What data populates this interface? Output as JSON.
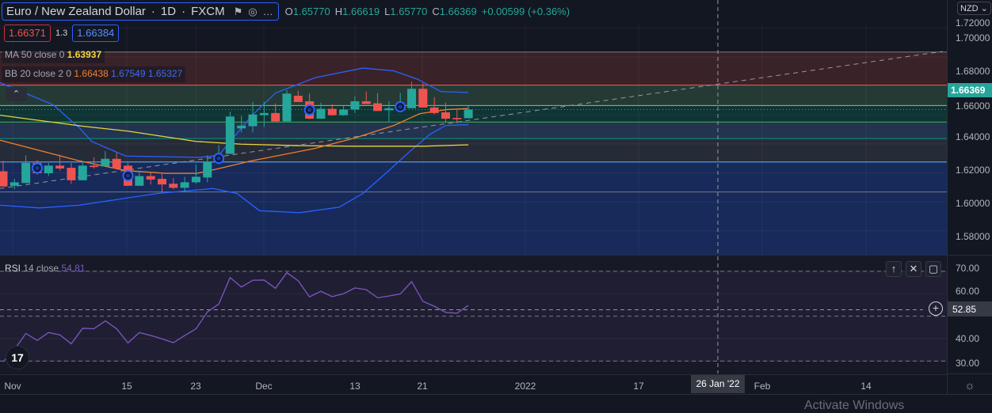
{
  "header": {
    "symbol": "Euro / New Zealand Dollar",
    "interval": "1D",
    "exchange": "FXCM",
    "separator": "·",
    "ohlc": {
      "o_label": "O",
      "o": "1.65770",
      "h_label": "H",
      "h": "1.66619",
      "l_label": "L",
      "l": "1.65770",
      "c_label": "C",
      "c": "1.66369",
      "change": "+0.00599 (+0.36%)"
    }
  },
  "trade": {
    "sell": "1.66371",
    "spread": "1.3",
    "buy": "1.66384"
  },
  "indicators": {
    "ma": {
      "name": "MA",
      "params": "50 close 0",
      "value": "1.63937"
    },
    "bb": {
      "name": "BB",
      "params": "20 close 2 0",
      "basis": "1.66438",
      "upper": "1.67549",
      "lower": "1.65327"
    },
    "rsi": {
      "name": "RSI",
      "params": "14 close",
      "value": "54.81"
    }
  },
  "collapse_icon": "chevron-up-icon",
  "currency": "NZD",
  "price_axis": {
    "labels": [
      "1.72000",
      "1.70000",
      "1.68000",
      "1.66000",
      "1.64000",
      "1.62000",
      "1.60000",
      "1.58000"
    ],
    "current": "1.66369"
  },
  "rsi_axis": {
    "labels": [
      "70.00",
      "60.00",
      "40.00",
      "30.00"
    ],
    "crosshair": "52.85"
  },
  "time_axis": {
    "labels": [
      "Nov",
      "15",
      "23",
      "Dec",
      "13",
      "21",
      "2022",
      "17",
      "Feb",
      "14"
    ],
    "crosshair": "26 Jan '22"
  },
  "watermark": "Activate Windows",
  "logo": "TV",
  "colors": {
    "up": "#26a69a",
    "down": "#ef5350",
    "ma": "#e6d53c",
    "bb_basis": "#f07f2a",
    "bb_band": "#2962ff",
    "rsi": "#7e57c2"
  },
  "chart_data": {
    "type": "candlestick",
    "ylim": [
      1.5635,
      1.7229
    ],
    "candles_ohlc": [
      [
        1.6211,
        1.6283,
        1.6106,
        1.6106
      ],
      [
        1.6111,
        1.6159,
        1.6087,
        1.6135
      ],
      [
        1.613,
        1.6321,
        1.613,
        1.6269
      ],
      [
        1.6269,
        1.6288,
        1.6187,
        1.6197
      ],
      [
        1.6197,
        1.6269,
        1.6178,
        1.625
      ],
      [
        1.625,
        1.6326,
        1.6216,
        1.623
      ],
      [
        1.6235,
        1.6269,
        1.6125,
        1.6149
      ],
      [
        1.6149,
        1.6278,
        1.6149,
        1.625
      ],
      [
        1.625,
        1.6307,
        1.623,
        1.624
      ],
      [
        1.6245,
        1.635,
        1.6245,
        1.6297
      ],
      [
        1.6297,
        1.634,
        1.623,
        1.623
      ],
      [
        1.625,
        1.6269,
        1.6111,
        1.6111
      ],
      [
        1.6111,
        1.6216,
        1.6111,
        1.6178
      ],
      [
        1.6178,
        1.6202,
        1.612,
        1.6154
      ],
      [
        1.6159,
        1.6192,
        1.6068,
        1.612
      ],
      [
        1.6125,
        1.6164,
        1.6087,
        1.6097
      ],
      [
        1.6097,
        1.6173,
        1.6068,
        1.6135
      ],
      [
        1.6135,
        1.6259,
        1.6125,
        1.6173
      ],
      [
        1.6168,
        1.6321,
        1.6135,
        1.6278
      ],
      [
        1.6288,
        1.6393,
        1.6259,
        1.6312
      ],
      [
        1.6331,
        1.6622,
        1.6331,
        1.6589
      ],
      [
        1.6507,
        1.6594,
        1.6479,
        1.6526
      ],
      [
        1.6522,
        1.6689,
        1.6479,
        1.6603
      ],
      [
        1.6598,
        1.6689,
        1.6517,
        1.6613
      ],
      [
        1.6613,
        1.668,
        1.6555,
        1.6555
      ],
      [
        1.6555,
        1.6771,
        1.6555,
        1.6747
      ],
      [
        1.6732,
        1.6766,
        1.6689,
        1.6689
      ],
      [
        1.6694,
        1.6747,
        1.657,
        1.6574
      ],
      [
        1.6574,
        1.6684,
        1.6574,
        1.6642
      ],
      [
        1.6642,
        1.6675,
        1.6594,
        1.6598
      ],
      [
        1.6598,
        1.6665,
        1.6594,
        1.6637
      ],
      [
        1.6637,
        1.6727,
        1.6613,
        1.6694
      ],
      [
        1.6694,
        1.6761,
        1.6675,
        1.6675
      ],
      [
        1.668,
        1.6751,
        1.6627,
        1.6627
      ],
      [
        1.6632,
        1.6694,
        1.655,
        1.6646
      ],
      [
        1.6651,
        1.6751,
        1.6632,
        1.6661
      ],
      [
        1.6646,
        1.6828,
        1.6646,
        1.678
      ],
      [
        1.678,
        1.6818,
        1.6651,
        1.6651
      ],
      [
        1.6651,
        1.6723,
        1.6603,
        1.6613
      ],
      [
        1.6618,
        1.6684,
        1.6545,
        1.6574
      ],
      [
        1.6579,
        1.6642,
        1.6541,
        1.657
      ],
      [
        1.6577,
        1.66619,
        1.6577,
        1.66369
      ]
    ],
    "event_markers_bar_index": [
      3,
      11,
      19,
      27,
      35
    ],
    "ma50_points": [
      [
        -0.3,
        1.6598
      ],
      [
        7,
        1.6522
      ],
      [
        11,
        1.6488
      ],
      [
        17,
        1.6417
      ],
      [
        21,
        1.6398
      ],
      [
        26,
        1.6388
      ],
      [
        31,
        1.6384
      ],
      [
        37,
        1.6384
      ],
      [
        41,
        1.63937
      ]
    ],
    "bb_basis_points": [
      [
        -0.3,
        1.6426
      ],
      [
        6.7,
        1.6283
      ],
      [
        10.8,
        1.6216
      ],
      [
        14.3,
        1.6197
      ],
      [
        17.1,
        1.6197
      ],
      [
        18.8,
        1.6226
      ],
      [
        21.9,
        1.6283
      ],
      [
        27.5,
        1.6369
      ],
      [
        31,
        1.6441
      ],
      [
        34.4,
        1.6526
      ],
      [
        36.7,
        1.6608
      ],
      [
        39.1,
        1.6637
      ],
      [
        41,
        1.66438
      ]
    ],
    "bb_upper_points": [
      [
        -0.3,
        1.6823
      ],
      [
        4.4,
        1.667
      ],
      [
        6.7,
        1.6512
      ],
      [
        7.8,
        1.6417
      ],
      [
        10.8,
        1.6316
      ],
      [
        17.3,
        1.6307
      ],
      [
        19,
        1.6321
      ],
      [
        21.9,
        1.6594
      ],
      [
        24,
        1.6751
      ],
      [
        27.5,
        1.6857
      ],
      [
        31.7,
        1.6923
      ],
      [
        34.4,
        1.6904
      ],
      [
        36.5,
        1.6847
      ],
      [
        38.6,
        1.6761
      ],
      [
        41,
        1.67549
      ]
    ],
    "bb_lower_points": [
      [
        -0.3,
        1.5977
      ],
      [
        3.2,
        1.5958
      ],
      [
        6.7,
        1.5977
      ],
      [
        13.6,
        1.6058
      ],
      [
        18.5,
        1.6092
      ],
      [
        20.6,
        1.6058
      ],
      [
        22.6,
        1.5939
      ],
      [
        26.1,
        1.5925
      ],
      [
        29.6,
        1.5963
      ],
      [
        31.7,
        1.6058
      ],
      [
        33.8,
        1.6202
      ],
      [
        35.8,
        1.6345
      ],
      [
        37.6,
        1.6465
      ],
      [
        39,
        1.6527
      ],
      [
        41,
        1.65327
      ]
    ],
    "fib_levels": [
      1.7034,
      1.6806,
      1.6665,
      1.6551,
      1.6437,
      1.6275,
      1.6068
    ],
    "fib_zone_colors": [
      "#3a2229",
      "#263a35",
      "#0f3434",
      "#223450",
      "#262b38",
      "#172a5a"
    ],
    "fib_line_colors": [
      "#787b86",
      "#ef5350",
      "#81c784",
      "#4caf50",
      "#089981",
      "#64b5f6",
      "#787b86"
    ],
    "trendline": [
      [
        -0.3,
        1.6092
      ],
      [
        82.8,
        1.7038
      ]
    ],
    "rsi": {
      "ylim": [
        24.5,
        77
      ],
      "bands": [
        70,
        50,
        30
      ],
      "values": [
        29.7,
        35.2,
        42.3,
        39.2,
        42.7,
        41.7,
        37.7,
        44.6,
        44.4,
        47.9,
        44.4,
        38.1,
        42.7,
        41.4,
        39.9,
        38.2,
        41.4,
        44.4,
        51.9,
        55.4,
        67.2,
        63.0,
        66.0,
        66.1,
        62.4,
        69.4,
        65.8,
        58.6,
        61.1,
        58.7,
        60.0,
        62.6,
        61.8,
        58.2,
        59.0,
        59.9,
        65.4,
        56.6,
        54.4,
        51.7,
        51.3,
        54.81
      ]
    }
  }
}
